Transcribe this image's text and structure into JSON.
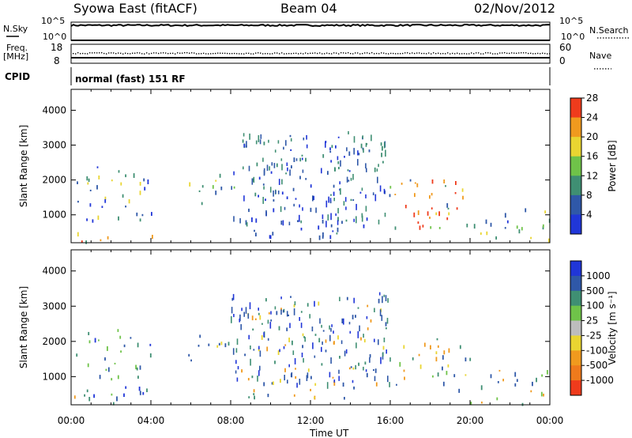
{
  "header": {
    "station": "Syowa East (fitACF)",
    "beam": "Beam 04",
    "date": "02/Nov/2012"
  },
  "status_panel": {
    "nsky_label": "N.Sky",
    "nsearch_label": "N.Search",
    "nsky_ticks": [
      "10^5",
      "10^0"
    ],
    "nsearch_ticks": [
      "10^5",
      "10^0"
    ],
    "freq_label_line1": "Freq.",
    "freq_label_line2": "[MHz]",
    "freq_ticks": [
      "18",
      "8"
    ],
    "nave_label": "Nave",
    "nave_ticks": [
      "60",
      "0"
    ],
    "cpid_label": "CPID",
    "cpid_text": "normal (fast) 151 RF"
  },
  "chart_data": [
    {
      "type": "heatmap",
      "name": "power-panel",
      "ylabel": "Slant Range [km]",
      "ylim": [
        200,
        4600
      ],
      "y_ticks": [
        1000,
        2000,
        3000,
        4000
      ],
      "x_ticks": [
        "00:00",
        "04:00",
        "08:00",
        "12:00",
        "16:00",
        "20:00",
        "00:00"
      ],
      "xlim_hours": [
        0,
        24
      ],
      "colorbar_label": "Power [dB]",
      "colorbar_ticks": [
        "4",
        "8",
        "12",
        "16",
        "20",
        "24",
        "28"
      ],
      "colors": [
        "#2036d8",
        "#2f58a8",
        "#3f8f73",
        "#6fc349",
        "#e9d531",
        "#f09a1e",
        "#ef3b1c"
      ],
      "regions": [
        {
          "h0": 0.0,
          "h1": 4.2,
          "r0": 250,
          "r1": 500,
          "cls": [
            6,
            5,
            2
          ]
        },
        {
          "h0": 0.1,
          "h1": 4.2,
          "r0": 500,
          "r1": 2400,
          "cls": [
            0,
            1,
            2,
            4
          ]
        },
        {
          "h0": 5.8,
          "h1": 8.3,
          "r0": 1300,
          "r1": 2200,
          "cls": [
            1,
            2,
            3,
            4
          ]
        },
        {
          "h0": 8.5,
          "h1": 15.8,
          "r0": 400,
          "r1": 3300,
          "cls": [
            0,
            1,
            2
          ]
        },
        {
          "h0": 15.8,
          "h1": 20.0,
          "r0": 600,
          "r1": 2100,
          "cls": [
            1,
            2,
            3,
            4,
            5,
            6
          ]
        },
        {
          "h0": 16.5,
          "h1": 20.0,
          "r0": 700,
          "r1": 1200,
          "cls": [
            5,
            6,
            4
          ]
        },
        {
          "h0": 20.0,
          "h1": 24.0,
          "r0": 250,
          "r1": 1300,
          "cls": [
            0,
            1,
            2,
            3,
            4
          ]
        }
      ]
    },
    {
      "type": "heatmap",
      "name": "velocity-panel",
      "ylabel": "Slant Range [km]",
      "ylim": [
        200,
        4600
      ],
      "y_ticks": [
        1000,
        2000,
        3000,
        4000
      ],
      "x_ticks": [
        "00:00",
        "04:00",
        "08:00",
        "12:00",
        "16:00",
        "20:00",
        "00:00"
      ],
      "xlim_hours": [
        0,
        24
      ],
      "xlabel": "Time UT",
      "colorbar_label": "Velocity [m s⁻¹]",
      "colorbar_ticks": [
        "1000",
        "500",
        "100",
        "25",
        "-25",
        "-100",
        "-500",
        "-1000"
      ],
      "colors": [
        "#2036d8",
        "#2f58a8",
        "#3f8f73",
        "#6fc349",
        "#bdbdbd",
        "#e9d531",
        "#f09a1e",
        "#ef7a1c",
        "#ef3b1c"
      ],
      "regions": [
        {
          "h0": 0.0,
          "h1": 4.2,
          "r0": 250,
          "r1": 500,
          "cls": [
            6,
            5,
            2,
            1
          ]
        },
        {
          "h0": 0.1,
          "h1": 4.2,
          "r0": 500,
          "r1": 2400,
          "cls": [
            1,
            2,
            0,
            3
          ]
        },
        {
          "h0": 5.8,
          "h1": 8.3,
          "r0": 1300,
          "r1": 2200,
          "cls": [
            5,
            6,
            2,
            1
          ]
        },
        {
          "h0": 8.5,
          "h1": 15.8,
          "r0": 400,
          "r1": 3300,
          "cls": [
            1,
            2,
            6,
            5
          ]
        },
        {
          "h0": 15.8,
          "h1": 20.0,
          "r0": 600,
          "r1": 2100,
          "cls": [
            2,
            3,
            5,
            6,
            1
          ]
        },
        {
          "h0": 20.0,
          "h1": 24.0,
          "r0": 250,
          "r1": 1300,
          "cls": [
            1,
            2,
            3,
            6
          ]
        }
      ]
    }
  ]
}
